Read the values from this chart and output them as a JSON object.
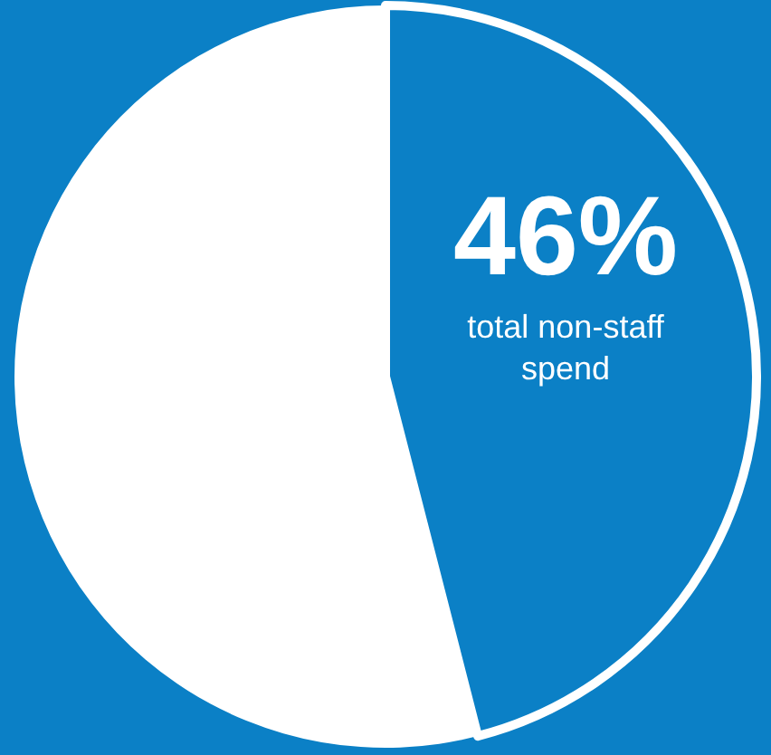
{
  "chart_data": {
    "type": "pie",
    "categories": [
      "total non-staff spend",
      null
    ],
    "values": [
      46,
      54
    ],
    "colors": [
      "#0b80c6",
      "#ffffff"
    ],
    "value_labels": [
      "46%",
      null
    ]
  }
}
